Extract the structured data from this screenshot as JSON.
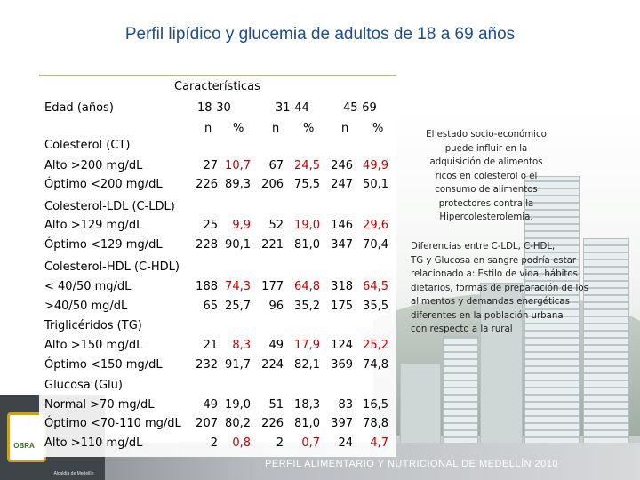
{
  "title": "Perfil lipídico y glucemia de adultos de 18 a 69 años",
  "table": {
    "header": {
      "group": "Características",
      "age_label": "Edad (años)",
      "age_groups": [
        "18-30",
        "31-44",
        "45-69"
      ],
      "sub": [
        "n",
        "%",
        "n",
        "%",
        "n",
        "%"
      ]
    },
    "rows": [
      {
        "label": "Colesterol (CT)"
      },
      {
        "label": "Alto >200 mg/dL",
        "values": [
          "27",
          "10,7",
          "67",
          "24,5",
          "246",
          "49,9"
        ]
      },
      {
        "label": "Óptimo <200 mg/dL",
        "values": [
          "226",
          "89,3",
          "206",
          "75,5",
          "247",
          "50,1"
        ]
      },
      {
        "label": "Colesterol-LDL (C-LDL)"
      },
      {
        "label": "Alto  >129 mg/dL",
        "values": [
          "25",
          "9,9",
          "52",
          "19,0",
          "146",
          "29,6"
        ]
      },
      {
        "label": "Óptimo  <129 mg/dL",
        "values": [
          "228",
          "90,1",
          "221",
          "81,0",
          "347",
          "70,4"
        ]
      },
      {
        "label": "Colesterol-HDL (C-HDL)"
      },
      {
        "label": "<  40/50 mg/dL",
        "values": [
          "188",
          "74,3",
          "177",
          "64,8",
          "318",
          "64,5"
        ]
      },
      {
        "label": ">40/50 mg/dL",
        "values": [
          "65",
          "25,7",
          "96",
          "35,2",
          "175",
          "35,5"
        ]
      },
      {
        "label": "Triglicéridos (TG)"
      },
      {
        "label": "Alto >150 mg/dL",
        "values": [
          "21",
          "8,3",
          "49",
          "17,9",
          "124",
          "25,2"
        ]
      },
      {
        "label": "Óptimo <150 mg/dL",
        "values": [
          "232",
          "91,7",
          "224",
          "82,1",
          "369",
          "74,8"
        ]
      },
      {
        "label": "Glucosa (Glu)"
      },
      {
        "label": "Normal >70 mg/dL",
        "values": [
          "49",
          "19,0",
          "51",
          "18,3",
          "83",
          "16,5"
        ]
      },
      {
        "label": "Óptimo <70-110 mg/dL",
        "values": [
          "207",
          "80,2",
          "226",
          "81,0",
          "397",
          "78,8"
        ]
      },
      {
        "label": "Alto >110 mg/dL",
        "values": [
          "2",
          "0,8",
          "2",
          "0,7",
          "24",
          "4,7"
        ]
      }
    ]
  },
  "notes": [
    "El estado socio-económico\npuede influir en la\nadquisición de alimentos\nricos en colesterol o el\nconsumo de alimentos\nprotectores contra la\nHipercolesterolemia.",
    "Diferencias entre C-LDL, C-HDL,\nTG y Glucosa en sangre podría estar\nrelacionado a: Estilo de vida, hábitos\ndietarios, formas de preparación de los\nalimentos y demandas energéticas\ndiferentes en la población urbana\ncon respecto a la rural"
  ],
  "footer": {
    "text": "PERFIL ALIMENTARIO Y NUTRICIONAL DE MEDELLÍN 2010",
    "logo_text": "OBRA",
    "logo_caption": "Alcaldía de Medellín"
  },
  "colors": {
    "title": "#1f4e8c",
    "highlight": "#c00000"
  }
}
